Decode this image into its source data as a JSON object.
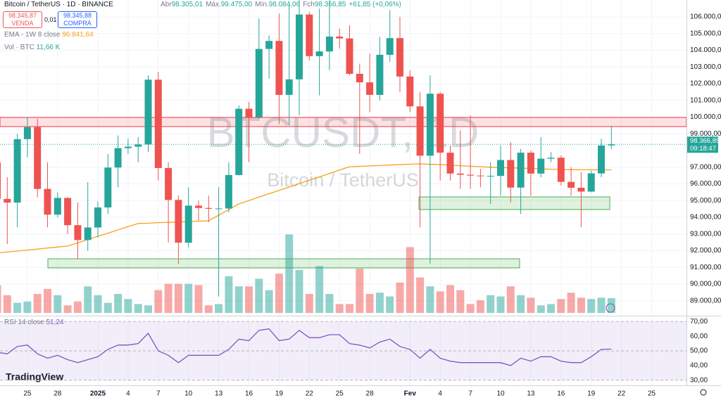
{
  "chart_data": {
    "type": "candlestick",
    "title": "Bitcoin / TetherUS · 1D · BINANCE",
    "up_color": "#26a69a",
    "down_color": "#ef5350",
    "categories": [
      null,
      null,
      null,
      "25",
      null,
      null,
      "28",
      null,
      null,
      null,
      "2025",
      null,
      null,
      "4",
      null,
      null,
      "7",
      null,
      null,
      "10",
      null,
      null,
      "13",
      null,
      null,
      "16",
      null,
      null,
      "19",
      null,
      null,
      "22",
      null,
      null,
      "25",
      null,
      null,
      "28",
      null,
      null,
      null,
      "Fev",
      null,
      null,
      "4",
      null,
      null,
      "7",
      null,
      null,
      "10",
      null,
      null,
      "13",
      null,
      null,
      "16",
      null,
      null,
      "19",
      null,
      null,
      "22",
      null,
      null,
      "25"
    ],
    "open": [
      97290,
      95100,
      94880,
      98680,
      99400,
      95700,
      94160,
      95160,
      93530,
      92640,
      93390,
      94590,
      96980,
      98140,
      98230,
      98360,
      102240,
      96950,
      95040,
      92480,
      94700,
      94560,
      94510,
      94530,
      96530,
      100500,
      99990,
      104080,
      104560,
      101330,
      102260,
      106140,
      103650,
      103930,
      104820,
      104710,
      102590,
      102080,
      101330,
      103730,
      104730,
      102430,
      100640,
      97690,
      101400,
      97870,
      96620,
      96550,
      96500,
      96470,
      96480,
      97430,
      95780,
      97870,
      96620,
      97510,
      97570,
      96120,
      95770,
      95540,
      96630,
      98305.01,
      null,
      null,
      null,
      null
    ],
    "high": [
      97400,
      96400,
      99000,
      99960,
      99900,
      97300,
      95500,
      95200,
      94900,
      96100,
      94950,
      97800,
      98900,
      98700,
      98800,
      102500,
      102700,
      97300,
      95300,
      95800,
      95000,
      95300,
      95800,
      97300,
      100700,
      100900,
      105900,
      104900,
      106200,
      106800,
      107000,
      106300,
      106500,
      107000,
      105300,
      105500,
      103200,
      103800,
      104800,
      106400,
      106000,
      102800,
      101500,
      102500,
      101500,
      98300,
      99200,
      100100,
      96900,
      97300,
      98300,
      98500,
      98100,
      98000,
      98800,
      97900,
      97700,
      97000,
      96700,
      96800,
      98700,
      99475,
      null,
      null,
      null,
      null
    ],
    "low": [
      94200,
      92400,
      93400,
      97600,
      95200,
      93400,
      94000,
      93000,
      91500,
      92000,
      92800,
      94200,
      95800,
      97800,
      97300,
      97900,
      96200,
      92500,
      91200,
      92200,
      93800,
      93700,
      89260,
      94300,
      96500,
      97300,
      99900,
      102300,
      99600,
      99500,
      100100,
      103400,
      101300,
      102800,
      104100,
      102500,
      97800,
      100300,
      101000,
      103300,
      101500,
      100300,
      93400,
      91231,
      96200,
      96200,
      95700,
      95700,
      95800,
      94800,
      95300,
      94900,
      94200,
      95300,
      96400,
      97300,
      95900,
      95300,
      93400,
      95500,
      96400,
      98084.06,
      null,
      null,
      null,
      null
    ],
    "close": [
      95100,
      94880,
      98680,
      99400,
      95700,
      94160,
      95160,
      93530,
      92640,
      93390,
      94590,
      96980,
      98140,
      98230,
      98360,
      102240,
      96950,
      95040,
      92480,
      94700,
      94560,
      94510,
      94530,
      96530,
      100500,
      99990,
      104080,
      104560,
      101330,
      102260,
      106140,
      103650,
      103930,
      104820,
      104710,
      102590,
      102080,
      101330,
      103730,
      104730,
      102430,
      100640,
      97690,
      101400,
      97870,
      96620,
      96550,
      96500,
      96470,
      96480,
      97430,
      95780,
      97870,
      96620,
      97510,
      97570,
      96120,
      95770,
      95540,
      96630,
      98300,
      98366.85,
      null,
      null,
      null,
      null
    ],
    "ylim": [
      88150,
      107010
    ],
    "yticks": [
      {
        "value": 106000,
        "label": "106.000,00"
      },
      {
        "value": 105000,
        "label": "105.000,00"
      },
      {
        "value": 104000,
        "label": "104.000,00"
      },
      {
        "value": 103000,
        "label": "103.000,00"
      },
      {
        "value": 102000,
        "label": "102.000,00"
      },
      {
        "value": 101000,
        "label": "101.000,00"
      },
      {
        "value": 100000,
        "label": "100.000,00"
      },
      {
        "value": 99000,
        "label": "99.000,00"
      },
      {
        "value": 97000,
        "label": "97.000,00"
      },
      {
        "value": 96000,
        "label": "96.000,00"
      },
      {
        "value": 95000,
        "label": "95.000,00"
      },
      {
        "value": 94000,
        "label": "94.000,00"
      },
      {
        "value": 93000,
        "label": "93.000,00"
      },
      {
        "value": 92000,
        "label": "92.000,00"
      },
      {
        "value": 91000,
        "label": "91.000,00"
      },
      {
        "value": 90000,
        "label": "90.000,00"
      },
      {
        "value": 89000,
        "label": "89.000,00"
      }
    ],
    "grid": true,
    "ema": {
      "name": "EMA - 1W 8 close",
      "color": "#f7a21b",
      "value_label": "96.841,64",
      "values": [
        91860,
        91920,
        91980,
        92040,
        92100,
        92160,
        92220,
        92280,
        92470,
        92670,
        92860,
        93050,
        93250,
        93440,
        93630,
        93650,
        93680,
        93700,
        93720,
        93750,
        93770,
        93790,
        94130,
        94460,
        94800,
        95000,
        95210,
        95410,
        95610,
        95810,
        96020,
        96220,
        96420,
        96620,
        96830,
        97030,
        97050,
        97080,
        97100,
        97130,
        97150,
        97180,
        97200,
        97170,
        97150,
        97120,
        97090,
        97060,
        97030,
        97000,
        96980,
        96960,
        96940,
        96920,
        96900,
        96880,
        96860,
        96850,
        96848,
        96846,
        96844,
        96841.64,
        null,
        null,
        null,
        null
      ]
    },
    "volume": {
      "name": "Vol · BTC",
      "value_label": "11,66 K",
      "values": [
        22,
        14,
        8,
        9,
        15,
        19,
        14,
        6,
        9,
        21,
        14,
        8,
        15,
        11,
        7,
        6,
        18,
        23,
        23,
        23,
        22,
        6,
        7,
        29,
        21,
        21,
        27,
        18,
        31,
        62,
        34,
        15,
        37,
        15,
        7,
        7,
        35,
        15,
        16,
        13,
        24,
        52,
        28,
        21,
        17,
        22,
        18,
        7,
        10,
        14,
        13,
        21,
        14,
        12,
        6,
        7,
        11,
        16,
        12,
        11,
        12,
        11.66,
        null,
        null,
        null,
        null
      ]
    },
    "rsi": {
      "name": "RSI 14 close",
      "color": "#7e57c2",
      "value_label": "51,24",
      "ylim": [
        27,
        73
      ],
      "yticks": [
        {
          "value": 70,
          "label": "70,00"
        },
        {
          "value": 60,
          "label": "60,00"
        },
        {
          "value": 50,
          "label": "50,00"
        },
        {
          "value": 40,
          "label": "40,00"
        },
        {
          "value": 30,
          "label": "30,00"
        }
      ],
      "values": [
        49,
        48,
        53,
        54,
        48,
        45,
        47,
        44,
        42,
        44,
        46,
        51,
        54,
        54,
        55,
        62,
        50,
        47,
        42,
        47,
        47,
        47,
        47,
        51,
        58,
        57,
        64,
        65,
        57,
        58,
        64,
        59,
        59,
        61,
        61,
        55,
        54,
        52,
        56,
        58,
        53,
        51,
        45,
        51,
        45,
        43,
        42,
        42,
        42,
        42,
        42,
        40,
        45,
        43,
        46,
        46,
        43,
        42,
        42,
        46,
        51,
        51.24,
        null,
        null,
        null,
        null
      ]
    }
  },
  "ui": {
    "ohlc": [
      {
        "label": "Abr",
        "value": "98.305,01"
      },
      {
        "label": "Máx.",
        "value": "99.475,00"
      },
      {
        "label": "Mín.",
        "value": "98.084,06"
      },
      {
        "label": "Fch",
        "value": "98.366,85"
      }
    ],
    "change": "+61,85 (+0,06%)",
    "sell": {
      "price": "98.345,87",
      "label": "VENDA"
    },
    "spread": "0,01",
    "buy": {
      "price": "98.345,88",
      "label": "COMPRA"
    },
    "watermark": {
      "symbol": "BTCUSDT, 1D",
      "name": "Bitcoin / TetherUS"
    },
    "price_tag": {
      "price": "98.366,85",
      "countdown": "09:18:47"
    },
    "logo": "TradingView"
  }
}
